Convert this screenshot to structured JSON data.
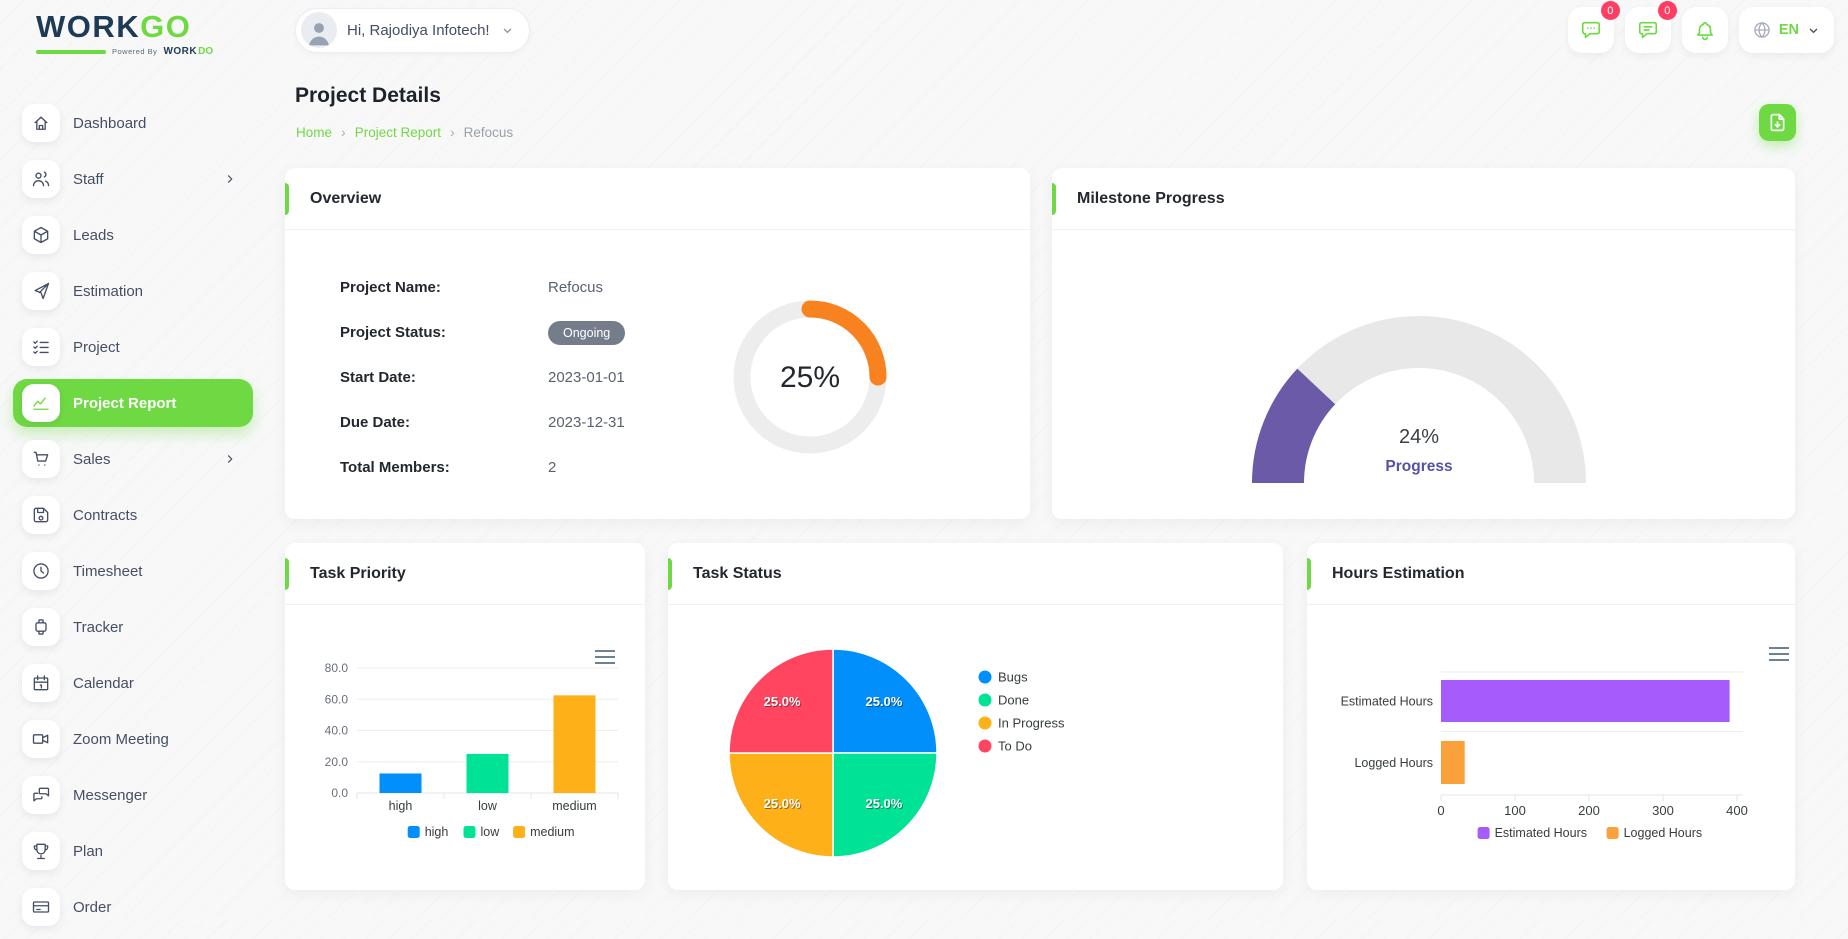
{
  "brand": {
    "name_primary": "WORK",
    "name_accent": "GO",
    "powered_by": "Powered By",
    "sub_primary": "WORK",
    "sub_accent": "DO",
    "green": "#6fd943",
    "navy": "#1d3b55"
  },
  "header": {
    "greeting": "Hi, Rajodiya Infotech!",
    "messages_badge": "0",
    "chat_badge": "0",
    "language": "EN"
  },
  "sidebar": {
    "items": [
      {
        "label": "Dashboard",
        "icon": "home"
      },
      {
        "label": "Staff",
        "icon": "users",
        "submenu": true
      },
      {
        "label": "Leads",
        "icon": "box"
      },
      {
        "label": "Estimation",
        "icon": "send"
      },
      {
        "label": "Project",
        "icon": "list-check"
      },
      {
        "label": "Project Report",
        "icon": "chart",
        "active": true
      },
      {
        "label": "Sales",
        "icon": "cart",
        "submenu": true
      },
      {
        "label": "Contracts",
        "icon": "floppy"
      },
      {
        "label": "Timesheet",
        "icon": "clock"
      },
      {
        "label": "Tracker",
        "icon": "watch"
      },
      {
        "label": "Calendar",
        "icon": "calendar"
      },
      {
        "label": "Zoom Meeting",
        "icon": "video"
      },
      {
        "label": "Messenger",
        "icon": "messages"
      },
      {
        "label": "Plan",
        "icon": "trophy"
      },
      {
        "label": "Order",
        "icon": "credit-card"
      }
    ]
  },
  "page": {
    "title": "Project Details",
    "breadcrumb": [
      {
        "label": "Home",
        "link": true
      },
      {
        "label": "Project Report",
        "link": true
      },
      {
        "label": "Refocus",
        "link": false
      }
    ]
  },
  "cards": {
    "overview": {
      "title": "Overview",
      "fields": [
        {
          "label": "Project Name:",
          "value": "Refocus",
          "type": "text"
        },
        {
          "label": "Project Status:",
          "value": "Ongoing",
          "type": "badge"
        },
        {
          "label": "Start Date:",
          "value": "2023-01-01",
          "type": "text"
        },
        {
          "label": "Due Date:",
          "value": "2023-12-31",
          "type": "text"
        },
        {
          "label": "Total Members:",
          "value": "2",
          "type": "text"
        }
      ]
    },
    "milestone": {
      "title": "Milestone Progress"
    },
    "task_priority": {
      "title": "Task Priority"
    },
    "task_status": {
      "title": "Task Status"
    },
    "hours_estimation": {
      "title": "Hours Estimation"
    }
  },
  "chart_data": [
    {
      "id": "overview_progress",
      "type": "radial_donut",
      "value_pct": 25,
      "label": "25%",
      "color": "#F8821F",
      "track_color": "#EDEDED"
    },
    {
      "id": "milestone_progress",
      "type": "semi_gauge",
      "value_pct": 24,
      "label": "24%",
      "sublabel": "Progress",
      "color": "#6A5AA8",
      "track_color": "#E8E8E8",
      "sublabel_color": "#5751A5"
    },
    {
      "id": "task_priority",
      "type": "bar",
      "title": "Task Priority",
      "categories": [
        "high",
        "low",
        "medium"
      ],
      "values": [
        12.5,
        25,
        62.5
      ],
      "colors": [
        "#008FFB",
        "#00E396",
        "#FEB019"
      ],
      "ylim": [
        0,
        80
      ],
      "yticks": [
        80,
        60,
        40,
        20,
        0
      ],
      "ytick_labels": [
        "80.0",
        "60.0",
        "40.0",
        "20.0",
        "0.0"
      ],
      "legend": [
        "high",
        "low",
        "medium"
      ],
      "legend_position": "bottom",
      "grid": true
    },
    {
      "id": "task_status",
      "type": "pie",
      "title": "Task Status",
      "labels": [
        "Bugs",
        "Done",
        "In Progress",
        "To Do"
      ],
      "values": [
        25,
        25,
        25,
        25
      ],
      "slice_labels": [
        "25.0%",
        "25.0%",
        "25.0%",
        "25.0%"
      ],
      "colors": [
        "#008FFB",
        "#00E396",
        "#FEB019",
        "#FF4560"
      ],
      "legend_position": "right"
    },
    {
      "id": "hours_estimation",
      "type": "bar_horizontal",
      "title": "Hours Estimation",
      "categories": [
        "Estimated Hours",
        "Logged Hours"
      ],
      "values": [
        390,
        32
      ],
      "colors": [
        "#A55CFB",
        "#FBA13C"
      ],
      "xlim": [
        0,
        400
      ],
      "xticks": [
        0,
        100,
        200,
        300,
        400
      ],
      "legend": [
        "Estimated Hours",
        "Logged Hours"
      ],
      "legend_position": "bottom",
      "grid": true
    }
  ]
}
